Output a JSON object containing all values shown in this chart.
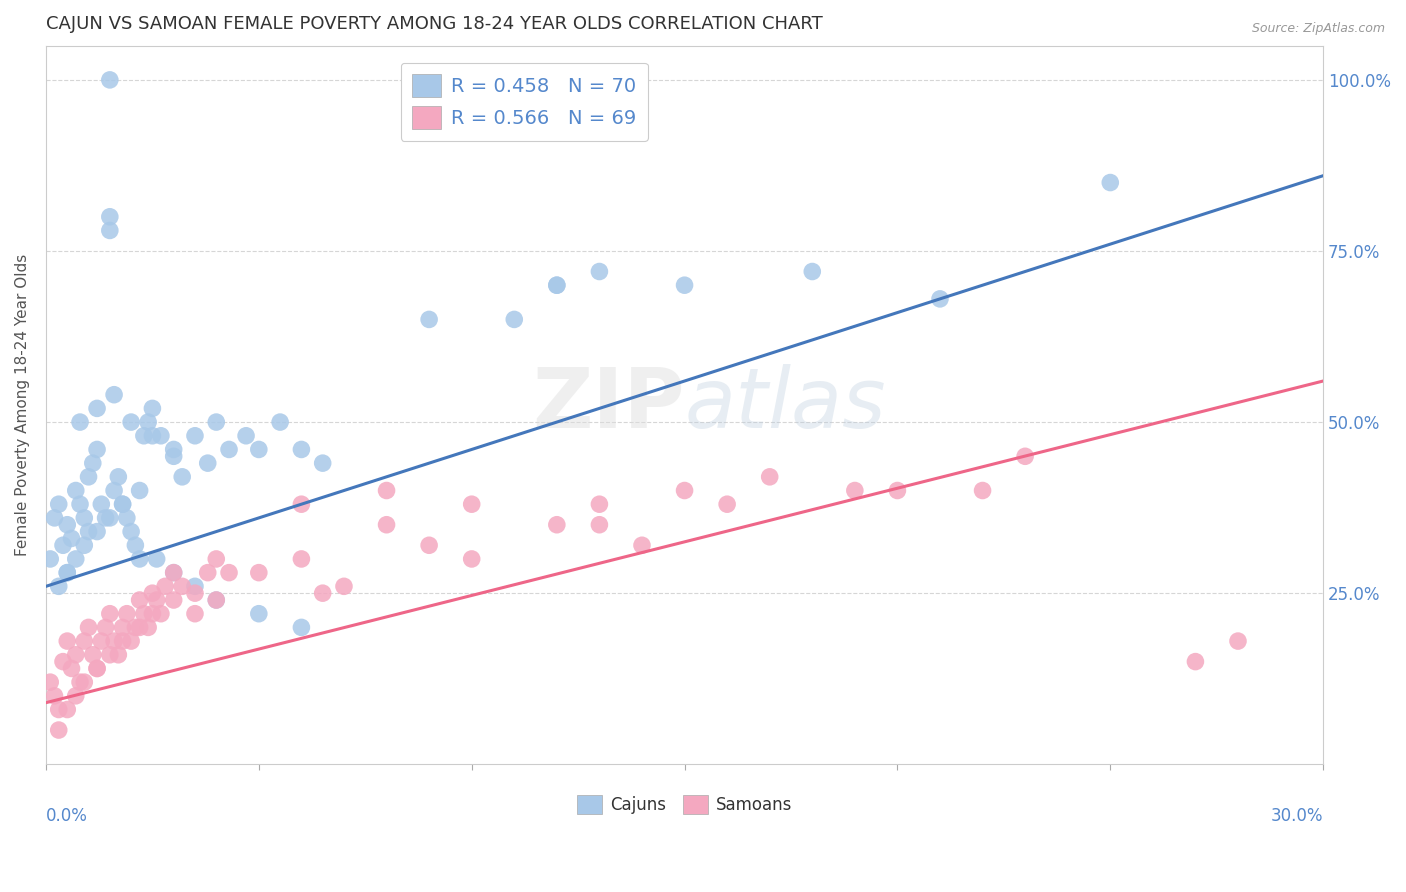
{
  "title": "CAJUN VS SAMOAN FEMALE POVERTY AMONG 18-24 YEAR OLDS CORRELATION CHART",
  "source": "Source: ZipAtlas.com",
  "ylabel": "Female Poverty Among 18-24 Year Olds",
  "x_min": 0.0,
  "x_max": 0.3,
  "y_min": 0.0,
  "y_max": 1.05,
  "cajun_R": 0.458,
  "cajun_N": 70,
  "samoan_R": 0.566,
  "samoan_N": 69,
  "blue_color": "#A8C8E8",
  "pink_color": "#F4A8C0",
  "blue_line_color": "#4477BB",
  "pink_line_color": "#EE6688",
  "background_color": "#FFFFFF",
  "grid_color": "#CCCCCC",
  "title_color": "#333333",
  "axis_label_color": "#5588CC",
  "legend_R_color": "#5588CC",
  "cajun_x": [
    0.001,
    0.002,
    0.003,
    0.004,
    0.005,
    0.005,
    0.006,
    0.007,
    0.008,
    0.009,
    0.01,
    0.01,
    0.011,
    0.012,
    0.013,
    0.014,
    0.015,
    0.015,
    0.016,
    0.017,
    0.018,
    0.019,
    0.02,
    0.021,
    0.022,
    0.023,
    0.024,
    0.025,
    0.027,
    0.03,
    0.032,
    0.035,
    0.038,
    0.04,
    0.043,
    0.047,
    0.05,
    0.055,
    0.06,
    0.065,
    0.003,
    0.005,
    0.007,
    0.009,
    0.012,
    0.015,
    0.018,
    0.022,
    0.026,
    0.03,
    0.035,
    0.04,
    0.05,
    0.06,
    0.008,
    0.012,
    0.016,
    0.02,
    0.025,
    0.03,
    0.12,
    0.21,
    0.13,
    0.09,
    0.15,
    0.25,
    0.18,
    0.11,
    0.015,
    0.12
  ],
  "cajun_y": [
    0.3,
    0.36,
    0.38,
    0.32,
    0.28,
    0.35,
    0.33,
    0.4,
    0.38,
    0.36,
    0.34,
    0.42,
    0.44,
    0.46,
    0.38,
    0.36,
    0.78,
    0.8,
    0.4,
    0.42,
    0.38,
    0.36,
    0.34,
    0.32,
    0.3,
    0.48,
    0.5,
    0.52,
    0.48,
    0.45,
    0.42,
    0.48,
    0.44,
    0.5,
    0.46,
    0.48,
    0.46,
    0.5,
    0.46,
    0.44,
    0.26,
    0.28,
    0.3,
    0.32,
    0.34,
    0.36,
    0.38,
    0.4,
    0.3,
    0.28,
    0.26,
    0.24,
    0.22,
    0.2,
    0.5,
    0.52,
    0.54,
    0.5,
    0.48,
    0.46,
    0.7,
    0.68,
    0.72,
    0.65,
    0.7,
    0.85,
    0.72,
    0.65,
    1.0,
    0.7
  ],
  "samoan_x": [
    0.001,
    0.002,
    0.003,
    0.004,
    0.005,
    0.006,
    0.007,
    0.008,
    0.009,
    0.01,
    0.011,
    0.012,
    0.013,
    0.014,
    0.015,
    0.016,
    0.017,
    0.018,
    0.019,
    0.02,
    0.021,
    0.022,
    0.023,
    0.024,
    0.025,
    0.026,
    0.027,
    0.028,
    0.03,
    0.032,
    0.035,
    0.038,
    0.04,
    0.043,
    0.003,
    0.005,
    0.007,
    0.009,
    0.012,
    0.015,
    0.018,
    0.022,
    0.025,
    0.03,
    0.035,
    0.04,
    0.05,
    0.06,
    0.065,
    0.07,
    0.08,
    0.09,
    0.1,
    0.12,
    0.14,
    0.15,
    0.13,
    0.17,
    0.2,
    0.23,
    0.06,
    0.08,
    0.1,
    0.13,
    0.16,
    0.19,
    0.22,
    0.27,
    0.28
  ],
  "samoan_y": [
    0.12,
    0.1,
    0.08,
    0.15,
    0.18,
    0.14,
    0.16,
    0.12,
    0.18,
    0.2,
    0.16,
    0.14,
    0.18,
    0.2,
    0.22,
    0.18,
    0.16,
    0.2,
    0.22,
    0.18,
    0.2,
    0.24,
    0.22,
    0.2,
    0.25,
    0.24,
    0.22,
    0.26,
    0.28,
    0.26,
    0.25,
    0.28,
    0.3,
    0.28,
    0.05,
    0.08,
    0.1,
    0.12,
    0.14,
    0.16,
    0.18,
    0.2,
    0.22,
    0.24,
    0.22,
    0.24,
    0.28,
    0.3,
    0.25,
    0.26,
    0.35,
    0.32,
    0.3,
    0.35,
    0.32,
    0.4,
    0.38,
    0.42,
    0.4,
    0.45,
    0.38,
    0.4,
    0.38,
    0.35,
    0.38,
    0.4,
    0.4,
    0.15,
    0.18
  ],
  "cajun_line_x0": 0.0,
  "cajun_line_y0": 0.26,
  "cajun_line_x1": 0.3,
  "cajun_line_y1": 0.86,
  "samoan_line_x0": 0.0,
  "samoan_line_y0": 0.09,
  "samoan_line_x1": 0.3,
  "samoan_line_y1": 0.56
}
